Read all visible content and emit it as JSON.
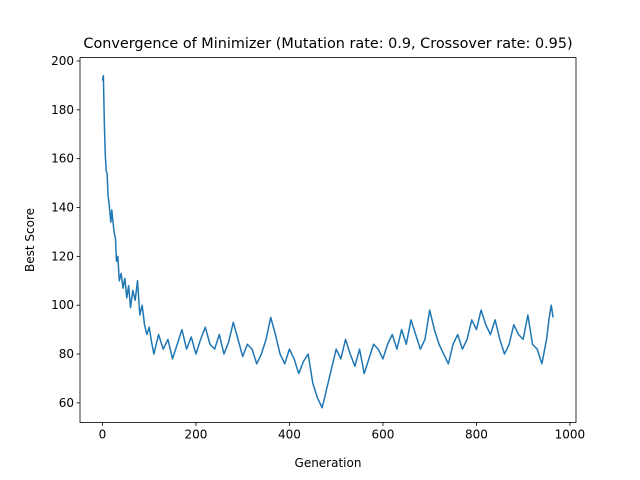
{
  "chart_data": {
    "type": "line",
    "title": "Convergence of Minimizer (Mutation rate: 0.9, Crossover rate: 0.95)",
    "xlabel": "Generation",
    "ylabel": "Best Score",
    "color": "#1f77b4",
    "x": [
      0,
      2,
      4,
      6,
      8,
      10,
      12,
      15,
      18,
      20,
      22,
      25,
      28,
      30,
      33,
      36,
      40,
      44,
      48,
      52,
      56,
      60,
      65,
      70,
      75,
      80,
      85,
      90,
      95,
      100,
      105,
      110,
      120,
      130,
      140,
      150,
      160,
      170,
      180,
      190,
      200,
      210,
      220,
      230,
      240,
      250,
      260,
      270,
      280,
      290,
      300,
      310,
      320,
      330,
      340,
      350,
      360,
      370,
      380,
      390,
      400,
      410,
      420,
      430,
      440,
      450,
      460,
      470,
      480,
      490,
      500,
      510,
      520,
      530,
      540,
      550,
      560,
      570,
      580,
      590,
      600,
      610,
      620,
      630,
      640,
      650,
      660,
      670,
      680,
      690,
      700,
      710,
      720,
      730,
      740,
      750,
      760,
      770,
      780,
      790,
      800,
      810,
      820,
      830,
      840,
      850,
      860,
      870,
      880,
      890,
      900,
      910,
      920,
      930,
      940,
      950,
      955,
      960,
      964
    ],
    "values": [
      192,
      194,
      175,
      162,
      155,
      154,
      145,
      140,
      134,
      139,
      135,
      130,
      127,
      118,
      120,
      110,
      113,
      107,
      111,
      103,
      108,
      99,
      106,
      102,
      110,
      96,
      100,
      92,
      88,
      91,
      85,
      80,
      88,
      82,
      86,
      78,
      84,
      90,
      82,
      87,
      80,
      86,
      91,
      84,
      82,
      88,
      80,
      85,
      93,
      86,
      79,
      84,
      82,
      76,
      80,
      86,
      95,
      88,
      80,
      76,
      82,
      78,
      72,
      77,
      80,
      68,
      62,
      58,
      66,
      74,
      82,
      78,
      86,
      80,
      75,
      82,
      72,
      78,
      84,
      82,
      78,
      84,
      88,
      82,
      90,
      84,
      94,
      88,
      82,
      86,
      98,
      90,
      84,
      80,
      76,
      84,
      88,
      82,
      86,
      94,
      90,
      98,
      92,
      88,
      94,
      86,
      80,
      84,
      92,
      88,
      86,
      96,
      84,
      82,
      76,
      86,
      94,
      100,
      95
    ],
    "xlim": [
      -48,
      1013
    ],
    "ylim": [
      52,
      201.4
    ],
    "xticks": [
      0,
      200,
      400,
      600,
      800,
      1000
    ],
    "yticks": [
      60,
      80,
      100,
      120,
      140,
      160,
      180,
      200
    ]
  }
}
